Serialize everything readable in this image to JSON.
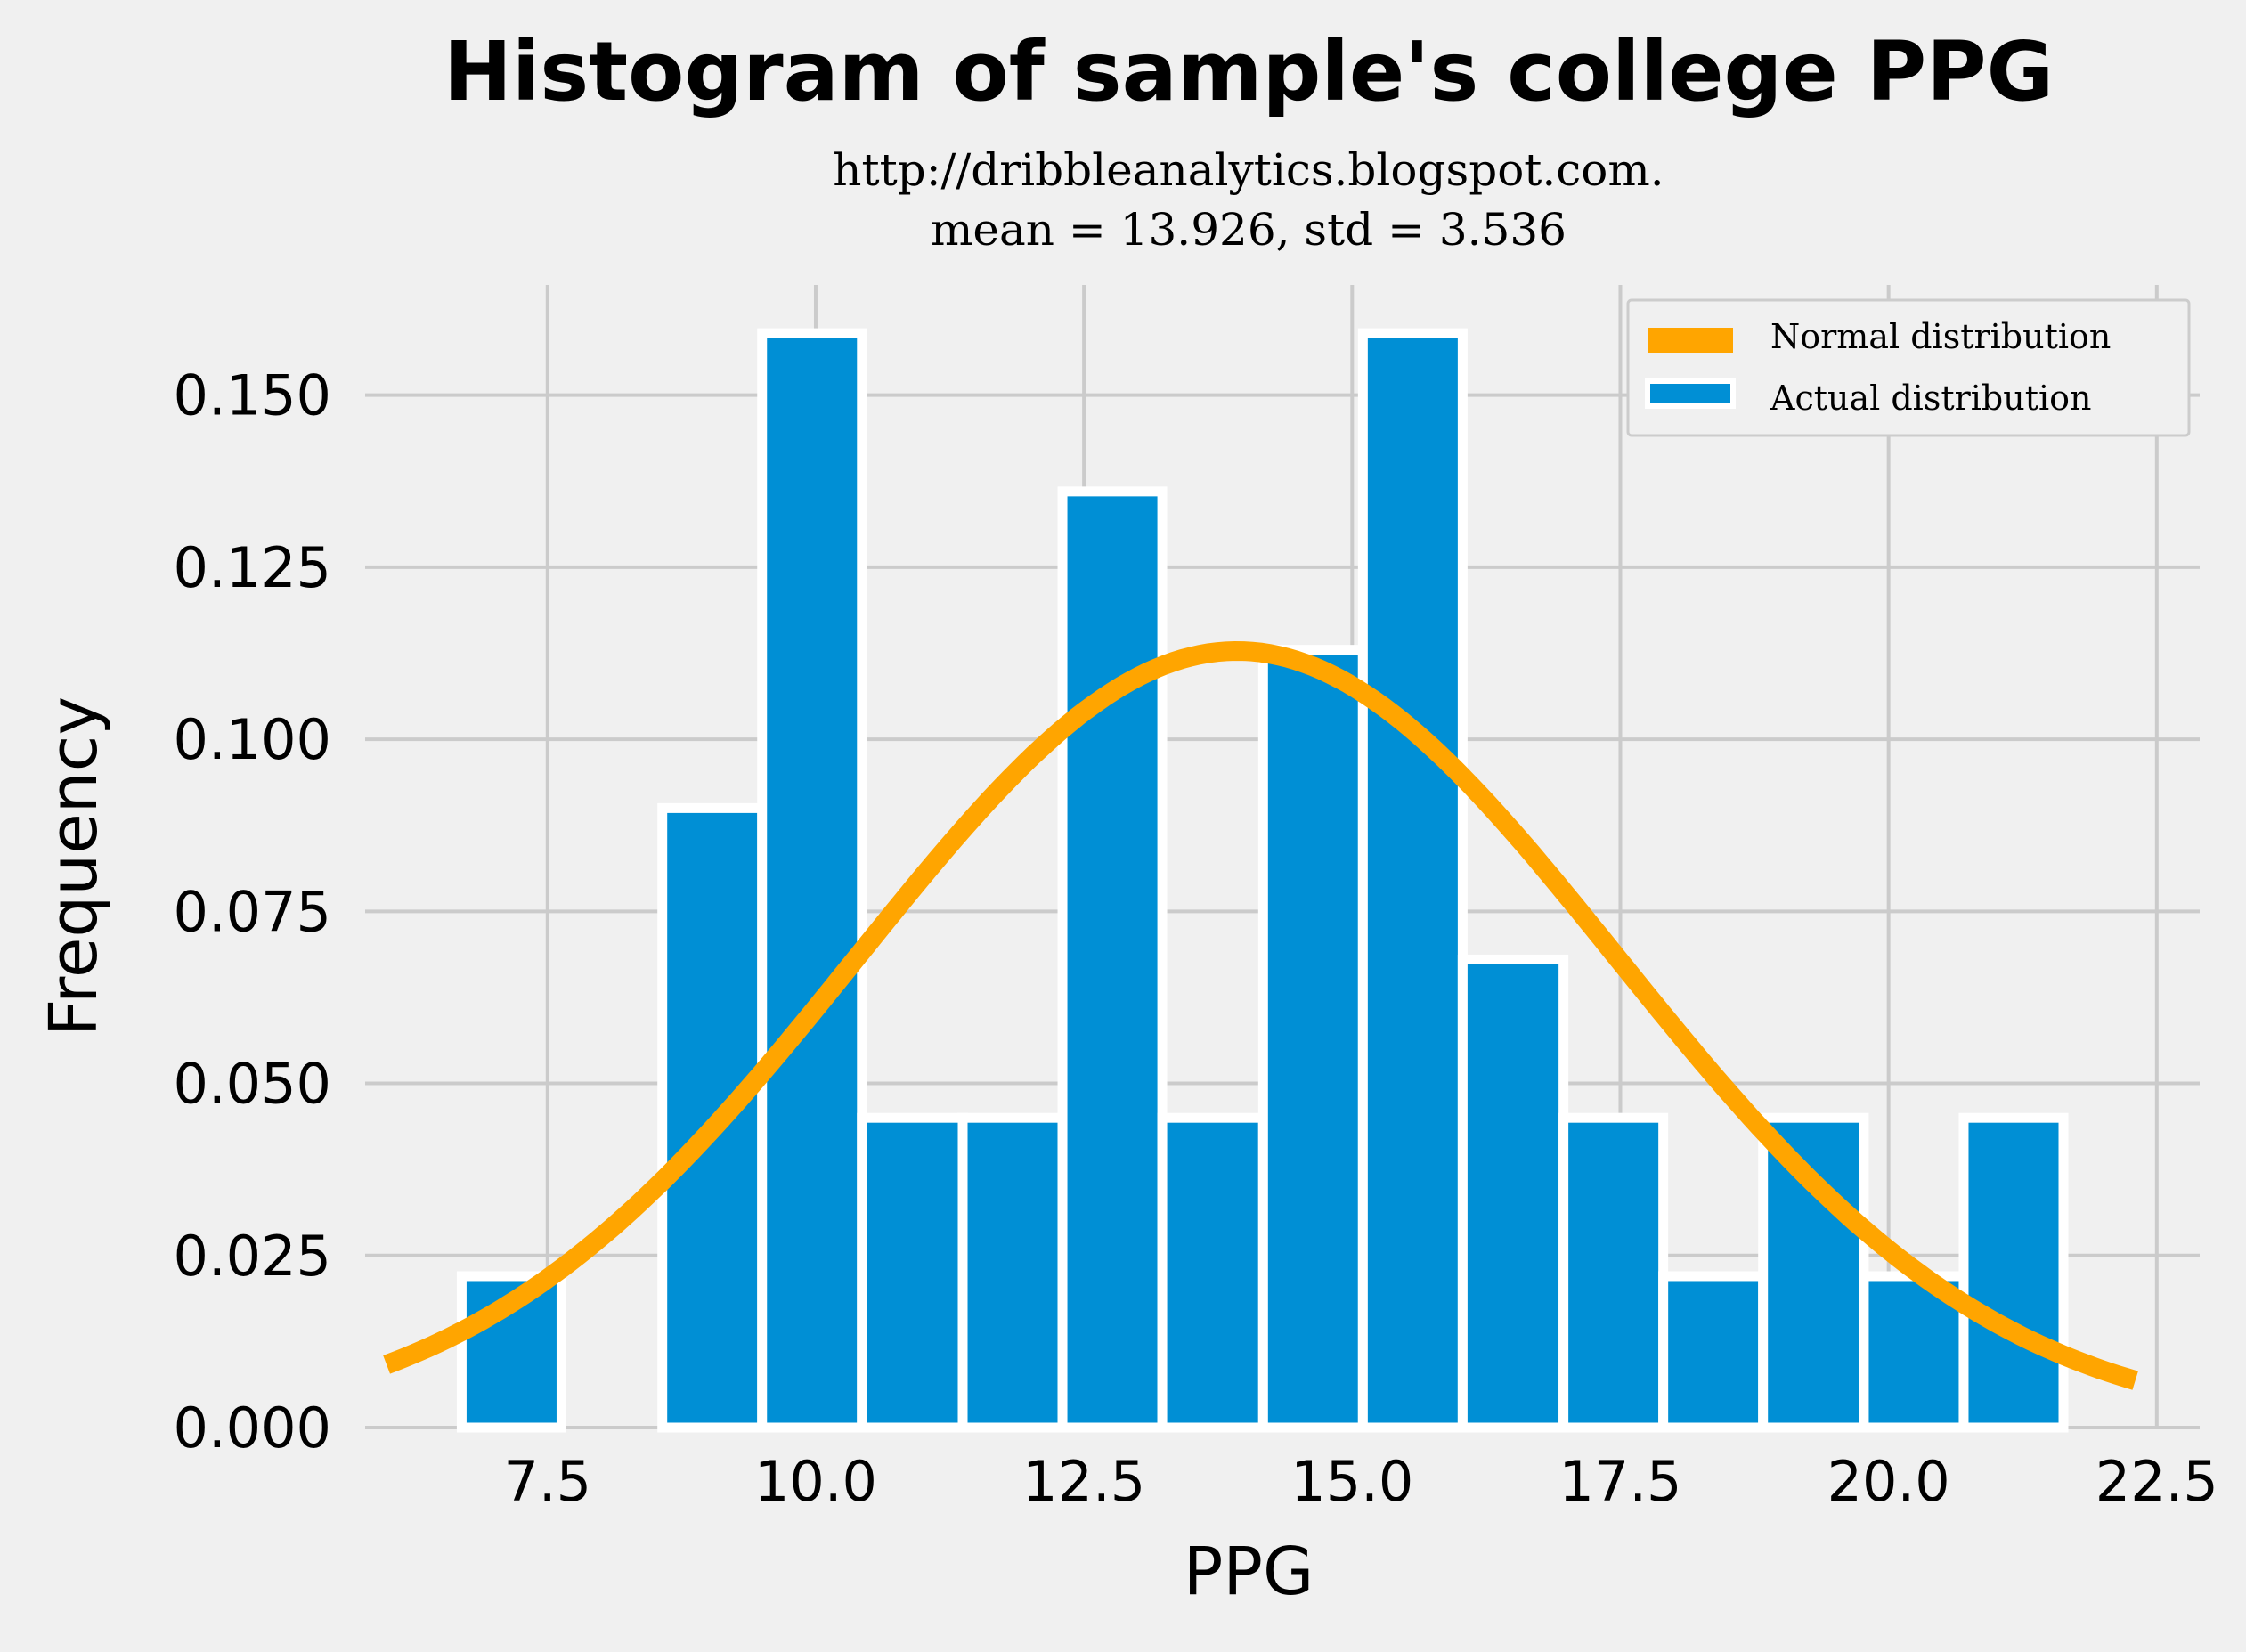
{
  "chart_data": {
    "type": "bar",
    "title": "Histogram of sample's college PPG",
    "subtitle_lines": [
      "http://dribbleanalytics.blogspot.com.",
      "mean = 13.926, std = 3.536"
    ],
    "xlabel": "PPG",
    "ylabel": "Frequency",
    "xlim": [
      5.8,
      22.9
    ],
    "ylim": [
      0,
      0.166
    ],
    "x_ticks": [
      7.5,
      10.0,
      12.5,
      15.0,
      17.5,
      20.0,
      22.5
    ],
    "x_tick_labels": [
      "7.5",
      "10.0",
      "12.5",
      "15.0",
      "17.5",
      "20.0",
      "22.5"
    ],
    "y_ticks": [
      0,
      0.025,
      0.05,
      0.075,
      0.1,
      0.125,
      0.15
    ],
    "y_tick_labels": [
      "0.000",
      "0.025",
      "0.050",
      "0.075",
      "0.100",
      "0.125",
      "0.150"
    ],
    "grid": true,
    "legend_position": "top-right",
    "bins": [
      {
        "x0": 6.7,
        "x1": 7.63,
        "value": 0.022
      },
      {
        "x0": 7.63,
        "x1": 8.57,
        "value": 0.0
      },
      {
        "x0": 8.57,
        "x1": 9.5,
        "value": 0.09
      },
      {
        "x0": 9.5,
        "x1": 10.43,
        "value": 0.159
      },
      {
        "x0": 10.43,
        "x1": 11.37,
        "value": 0.045
      },
      {
        "x0": 11.37,
        "x1": 12.3,
        "value": 0.045
      },
      {
        "x0": 12.3,
        "x1": 13.23,
        "value": 0.136
      },
      {
        "x0": 13.23,
        "x1": 14.17,
        "value": 0.045
      },
      {
        "x0": 14.17,
        "x1": 15.1,
        "value": 0.113
      },
      {
        "x0": 15.1,
        "x1": 16.03,
        "value": 0.159
      },
      {
        "x0": 16.03,
        "x1": 16.97,
        "value": 0.068
      },
      {
        "x0": 16.97,
        "x1": 17.9,
        "value": 0.045
      },
      {
        "x0": 17.9,
        "x1": 18.83,
        "value": 0.022
      },
      {
        "x0": 18.83,
        "x1": 19.77,
        "value": 0.045
      },
      {
        "x0": 19.77,
        "x1": 20.7,
        "value": 0.022
      },
      {
        "x0": 20.7,
        "x1": 21.63,
        "value": 0.045
      }
    ],
    "normal_curve": {
      "mean": 13.926,
      "std": 3.536,
      "x_range": [
        6.0,
        22.3
      ]
    },
    "series": [
      {
        "name": "Normal distribution",
        "color": "#ffa500"
      },
      {
        "name": "Actual distribution",
        "color": "#008fd5"
      }
    ]
  }
}
